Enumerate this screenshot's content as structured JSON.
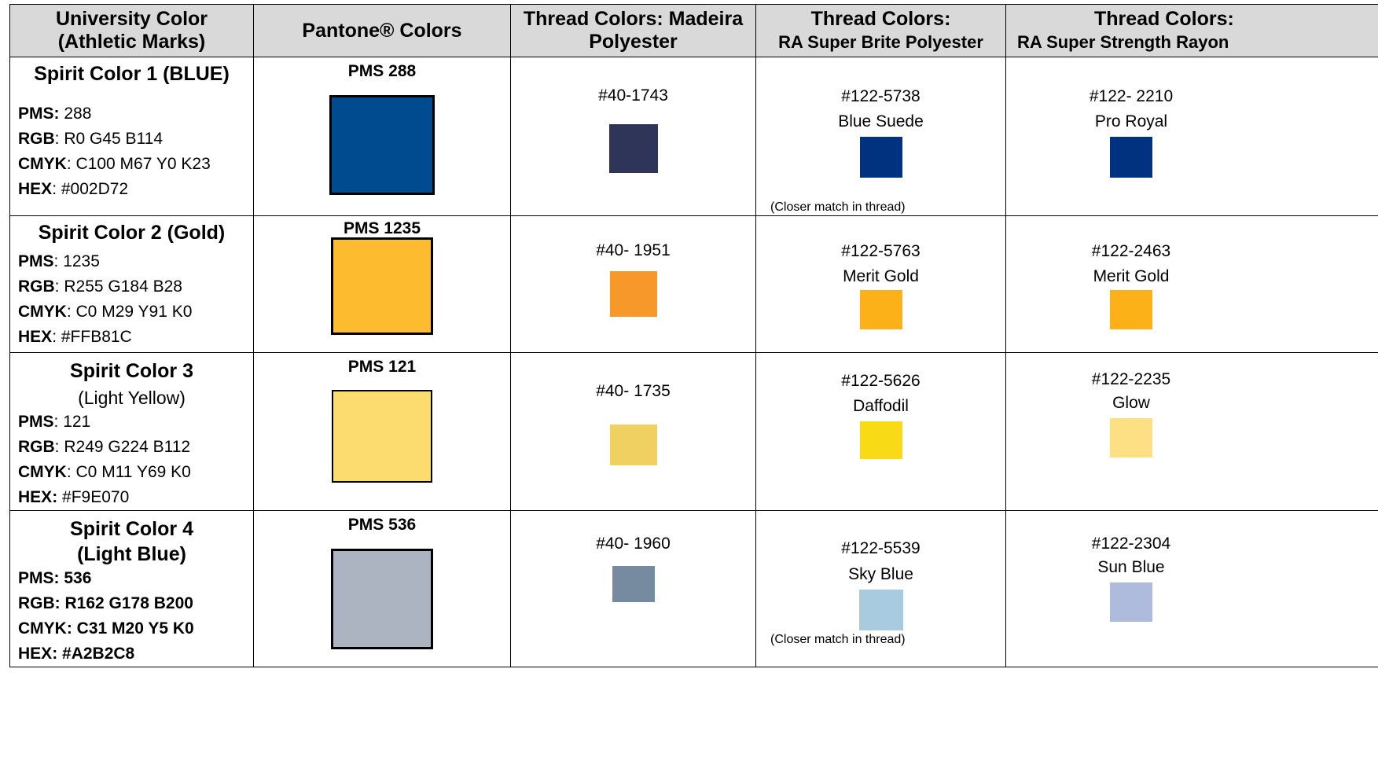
{
  "headers": {
    "col1_line1": "University Color",
    "col1_line2": "(Athletic Marks)",
    "col2": "Pantone® Colors",
    "col3_line1": "Thread Colors: Madeira",
    "col3_line2": "Polyester",
    "col4_line1": "Thread Colors:",
    "col4_line2": "RA Super Brite Polyester",
    "col5_line1": "Thread Colors:",
    "col5_line2": "RA Super Strength Rayon"
  },
  "labels": {
    "pms": "PMS",
    "rgb": "RGB",
    "cmyk": "CMYK",
    "hex": "HEX"
  },
  "rows": [
    {
      "title": "Spirit Color 1 (BLUE)",
      "subtitle": "",
      "pms": "288",
      "rgb": "R0 G45 B114",
      "cmyk": "C100 M67 Y0 K23",
      "hex": "#002D72",
      "pantone_label": "PMS 288",
      "pantone_color": "#004a8f",
      "madeira_number": "#40-1743",
      "madeira_color": "#2f3558",
      "superbrite_number": "#122-5738",
      "superbrite_name": "Blue Suede",
      "superbrite_color": "#003280",
      "superbrite_note": "(Closer match in thread)",
      "rayon_number": "#122- 2210",
      "rayon_name": "Pro Royal",
      "rayon_color": "#003280"
    },
    {
      "title": "Spirit Color 2 (Gold)",
      "subtitle": "",
      "pms": "1235",
      "rgb": "R255 G184 B28",
      "cmyk": "C0 M29 Y91 K0",
      "hex": "#FFB81C",
      "pantone_label": "PMS 1235",
      "pantone_color": "#fdbb2f",
      "madeira_number": "#40- 1951",
      "madeira_color": "#f6982a",
      "superbrite_number": "#122-5763",
      "superbrite_name": "Merit Gold",
      "superbrite_color": "#fdb118",
      "superbrite_note": "",
      "rayon_number": "#122-2463",
      "rayon_name": "Merit Gold",
      "rayon_color": "#fdb118"
    },
    {
      "title": "Spirit Color 3",
      "subtitle": "(Light Yellow)",
      "pms": "121",
      "rgb": "R249 G224 B112",
      "cmyk": "C0 M11 Y69 K0",
      "hex": "#F9E070",
      "pantone_label": "PMS 121",
      "pantone_color": "#fddc6f",
      "madeira_number": "#40- 1735",
      "madeira_color": "#f0d060",
      "superbrite_number": "#122-5626",
      "superbrite_name": "Daffodil",
      "superbrite_color": "#f9da16",
      "superbrite_note": "",
      "rayon_number": "#122-2235",
      "rayon_name": "Glow",
      "rayon_color": "#fde084"
    },
    {
      "title": "Spirit Color 4",
      "subtitle": "(Light Blue)",
      "pms": "536",
      "rgb": "R162 G178 B200",
      "cmyk": "C31 M20 Y5 K0",
      "hex": "#A2B2C8",
      "pantone_label": "PMS 536",
      "pantone_color": "#acb3c1",
      "madeira_number": "#40- 1960",
      "madeira_color": "#768ba0",
      "superbrite_number": "#122-5539",
      "superbrite_name": "Sky Blue",
      "superbrite_color": "#a8cbdf",
      "superbrite_note": "(Closer match in thread)",
      "rayon_number": "#122-2304",
      "rayon_name": "Sun Blue",
      "rayon_color": "#afbbdc"
    }
  ]
}
